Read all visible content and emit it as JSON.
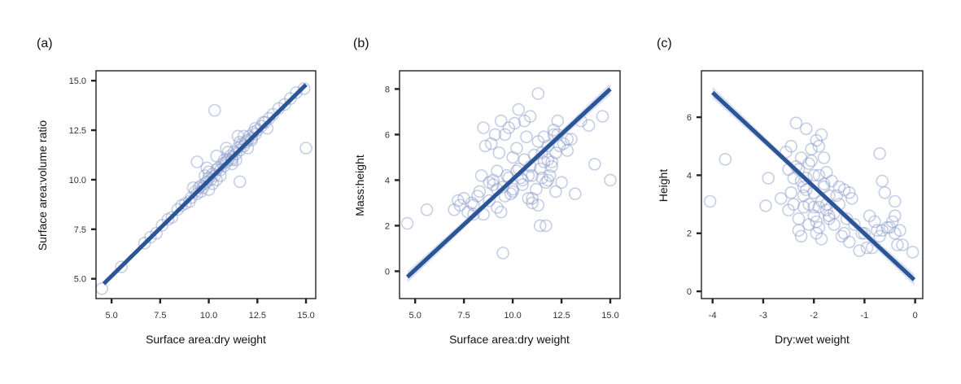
{
  "colors": {
    "line": "#2b5597",
    "band": "#c9d3e9",
    "marker": "#8ea0cc",
    "frame": "#222222"
  },
  "chart_data": [
    {
      "type": "scatter",
      "panel_label": "(a)",
      "xlabel": "Surface area:dry weight",
      "ylabel": "Surface area:volume ratio",
      "xlim": [
        4.2,
        15.5
      ],
      "ylim": [
        4.0,
        15.5
      ],
      "xticks": [
        5.0,
        7.5,
        10.0,
        12.5,
        15.0
      ],
      "xtick_labels": [
        "5.0",
        "7.5",
        "10.0",
        "12.5",
        "15.0"
      ],
      "yticks": [
        5.0,
        7.5,
        10.0,
        12.5,
        15.0
      ],
      "ytick_labels": [
        "5.0",
        "7.5",
        "10.0",
        "12.5",
        "15.0"
      ],
      "grid": false,
      "fit": {
        "x": [
          4.6,
          15.0
        ],
        "y": [
          4.75,
          14.8
        ],
        "band": 0.12
      },
      "x": [
        4.5,
        5.5,
        6.7,
        7.0,
        7.3,
        7.6,
        7.9,
        8.1,
        8.4,
        8.6,
        8.8,
        9.0,
        9.1,
        9.3,
        9.4,
        9.5,
        9.6,
        9.7,
        9.8,
        9.9,
        10.0,
        10.1,
        10.2,
        10.3,
        10.4,
        10.5,
        10.6,
        10.7,
        10.8,
        10.9,
        11.0,
        11.1,
        11.2,
        11.3,
        11.4,
        11.5,
        11.6,
        11.7,
        11.8,
        11.9,
        12.0,
        12.1,
        12.2,
        12.3,
        12.4,
        12.5,
        12.7,
        12.9,
        13.1,
        13.3,
        13.6,
        13.9,
        14.2,
        14.5,
        14.9,
        9.2,
        9.6,
        10.0,
        10.4,
        10.8,
        11.2,
        11.6,
        12.0,
        12.4,
        10.2,
        10.6,
        11.0,
        11.4,
        9.8,
        10.4,
        11.8,
        12.2,
        13.0,
        9.4,
        10.9,
        10.3,
        11.5,
        12.8,
        15.0,
        11.2,
        10.0,
        9.9,
        11.6
      ],
      "y": [
        4.5,
        5.6,
        6.8,
        7.1,
        7.3,
        7.7,
        8.0,
        8.1,
        8.5,
        8.7,
        8.8,
        8.9,
        9.1,
        9.4,
        9.3,
        9.6,
        9.7,
        9.6,
        9.8,
        9.9,
        10.1,
        10.0,
        10.3,
        10.2,
        10.5,
        10.6,
        10.5,
        10.8,
        10.7,
        10.9,
        11.0,
        11.2,
        11.1,
        11.4,
        11.3,
        11.6,
        11.5,
        11.8,
        11.7,
        11.9,
        12.0,
        12.2,
        12.1,
        12.4,
        12.3,
        12.5,
        12.7,
        12.9,
        13.1,
        13.3,
        13.6,
        13.8,
        14.1,
        14.4,
        14.6,
        9.6,
        9.4,
        10.4,
        10.0,
        11.0,
        10.8,
        11.9,
        11.6,
        12.6,
        9.8,
        10.2,
        11.4,
        11.0,
        10.2,
        11.2,
        12.2,
        12.0,
        12.6,
        10.9,
        11.6,
        13.5,
        12.2,
        12.9,
        11.6,
        11.0,
        9.5,
        10.6,
        9.9
      ]
    },
    {
      "type": "scatter",
      "panel_label": "(b)",
      "xlabel": "Surface area:dry weight",
      "ylabel": "Mass:height",
      "xlim": [
        4.2,
        15.5
      ],
      "ylim": [
        -1.2,
        8.8
      ],
      "xticks": [
        5.0,
        7.5,
        10.0,
        12.5,
        15.0
      ],
      "xtick_labels": [
        "5.0",
        "7.5",
        "10.0",
        "12.5",
        "15.0"
      ],
      "yticks": [
        0,
        2,
        4,
        6,
        8
      ],
      "ytick_labels": [
        "0",
        "2",
        "4",
        "6",
        "8"
      ],
      "grid": false,
      "fit": {
        "x": [
          4.6,
          15.0
        ],
        "y": [
          -0.25,
          8.0
        ],
        "band": 0.25
      },
      "x": [
        4.6,
        5.6,
        7.0,
        7.3,
        7.5,
        7.7,
        7.9,
        8.0,
        8.2,
        8.3,
        8.5,
        8.6,
        8.8,
        8.9,
        9.0,
        9.1,
        9.2,
        9.3,
        9.4,
        9.5,
        9.6,
        9.7,
        9.8,
        9.9,
        10.0,
        10.1,
        10.2,
        10.3,
        10.4,
        10.5,
        10.6,
        10.7,
        10.8,
        10.9,
        11.0,
        11.1,
        11.2,
        11.3,
        11.4,
        11.5,
        11.6,
        11.7,
        11.8,
        11.9,
        12.0,
        12.1,
        12.2,
        12.3,
        12.4,
        12.5,
        12.6,
        12.8,
        13.0,
        13.2,
        13.5,
        13.9,
        14.2,
        14.6,
        15.0,
        9.5,
        10.0,
        10.5,
        11.0,
        11.5,
        12.0,
        9.0,
        9.8,
        10.3,
        10.8,
        11.3,
        11.8,
        12.3,
        12.8,
        8.4,
        8.8,
        9.2,
        9.6,
        10.2,
        10.6,
        11.0,
        11.4,
        11.8,
        12.2,
        9.2,
        11.7,
        8.5,
        10.0,
        11.3,
        12.1,
        10.9,
        9.4,
        11.6,
        7.2,
        8.0
      ],
      "y": [
        2.1,
        2.7,
        2.7,
        2.9,
        3.2,
        2.6,
        3.0,
        2.9,
        3.3,
        3.5,
        6.3,
        5.5,
        3.1,
        5.6,
        4.0,
        6.0,
        3.6,
        5.2,
        6.6,
        3.7,
        6.0,
        4.2,
        6.3,
        3.4,
        5.0,
        6.5,
        4.4,
        7.1,
        4.1,
        3.8,
        6.6,
        5.9,
        4.2,
        4.6,
        4.2,
        5.1,
        3.6,
        7.8,
        4.5,
        5.2,
        4.8,
        3.9,
        5.5,
        4.2,
        4.8,
        6.0,
        5.2,
        6.6,
        5.5,
        3.9,
        5.6,
        5.3,
        5.8,
        3.4,
        6.6,
        6.4,
        4.7,
        6.8,
        4.0,
        0.8,
        3.5,
        4.0,
        3.0,
        4.1,
        4.6,
        3.8,
        4.1,
        4.5,
        3.2,
        2.9,
        4.9,
        6.0,
        5.8,
        4.2,
        3.9,
        4.4,
        3.3,
        5.4,
        4.9,
        3.2,
        2.0,
        4.0,
        3.5,
        2.8,
        2.0,
        2.5,
        3.6,
        5.7,
        6.2,
        6.8,
        2.6,
        5.9,
        3.1,
        2.5
      ]
    },
    {
      "type": "scatter",
      "panel_label": "(c)",
      "xlabel": "Dry:wet weight",
      "ylabel": "Height",
      "xlim": [
        -4.22,
        0.15
      ],
      "ylim": [
        -0.25,
        7.6
      ],
      "xticks": [
        -4,
        -3,
        -2,
        -1,
        0
      ],
      "xtick_labels": [
        "-4",
        "-3",
        "-2",
        "-1",
        "0"
      ],
      "yticks": [
        0,
        2,
        4,
        6
      ],
      "ytick_labels": [
        "0",
        "2",
        "4",
        "6"
      ],
      "grid": false,
      "fit": {
        "x": [
          -4.0,
          -0.02
        ],
        "y": [
          6.85,
          0.4
        ],
        "band": 0.2
      },
      "x": [
        -4.05,
        -3.75,
        -2.95,
        -2.9,
        -2.65,
        -2.55,
        -2.5,
        -2.45,
        -2.4,
        -2.35,
        -2.3,
        -2.25,
        -2.2,
        -2.15,
        -2.1,
        -2.05,
        -2.0,
        -1.95,
        -1.9,
        -1.85,
        -1.8,
        -1.75,
        -1.7,
        -1.65,
        -1.6,
        -1.55,
        -1.5,
        -1.45,
        -1.4,
        -1.35,
        -1.3,
        -1.25,
        -1.2,
        -1.1,
        -1.0,
        -0.95,
        -0.9,
        -0.85,
        -0.8,
        -0.75,
        -0.7,
        -0.65,
        -0.6,
        -0.55,
        -0.5,
        -0.45,
        -0.4,
        -0.35,
        -0.3,
        -0.25,
        -0.05,
        -2.45,
        -2.3,
        -2.2,
        -2.1,
        -2.0,
        -1.9,
        -1.8,
        -1.7,
        -2.4,
        -2.25,
        -2.15,
        -2.05,
        -1.95,
        -1.85,
        -1.75,
        -2.3,
        -2.1,
        -1.9,
        -1.7,
        -1.6,
        -2.2,
        -2.0,
        -1.8,
        -1.5,
        -1.4,
        -2.35,
        -2.15,
        -1.95,
        -1.75,
        -2.5,
        -2.0,
        -1.85,
        -0.7,
        -0.65,
        -0.4,
        -0.4,
        -1.9,
        -2.25,
        -1.3,
        -1.05
      ],
      "y": [
        3.1,
        4.55,
        2.95,
        3.9,
        3.2,
        4.8,
        2.8,
        5.0,
        3.9,
        5.8,
        2.5,
        4.6,
        3.6,
        5.6,
        3.0,
        4.9,
        3.4,
        5.2,
        2.9,
        5.4,
        3.6,
        4.1,
        2.6,
        3.8,
        2.3,
        3.3,
        3.0,
        1.9,
        3.5,
        2.5,
        1.7,
        3.2,
        2.3,
        1.4,
        2.0,
        1.5,
        2.6,
        1.5,
        2.4,
        2.1,
        1.9,
        3.8,
        3.4,
        2.2,
        2.2,
        2.4,
        3.1,
        1.6,
        2.1,
        1.6,
        1.35,
        3.4,
        4.2,
        2.9,
        4.4,
        2.6,
        4.0,
        3.7,
        3.3,
        3.0,
        3.8,
        3.5,
        4.5,
        2.4,
        3.1,
        2.8,
        2.1,
        2.3,
        2.2,
        2.5,
        2.7,
        3.3,
        4.0,
        4.6,
        3.6,
        2.0,
        4.3,
        3.9,
        2.0,
        3.0,
        4.2,
        2.9,
        1.8,
        4.75,
        2.1,
        2.0,
        2.6,
        5.0,
        1.9,
        3.4,
        2.0
      ]
    }
  ]
}
